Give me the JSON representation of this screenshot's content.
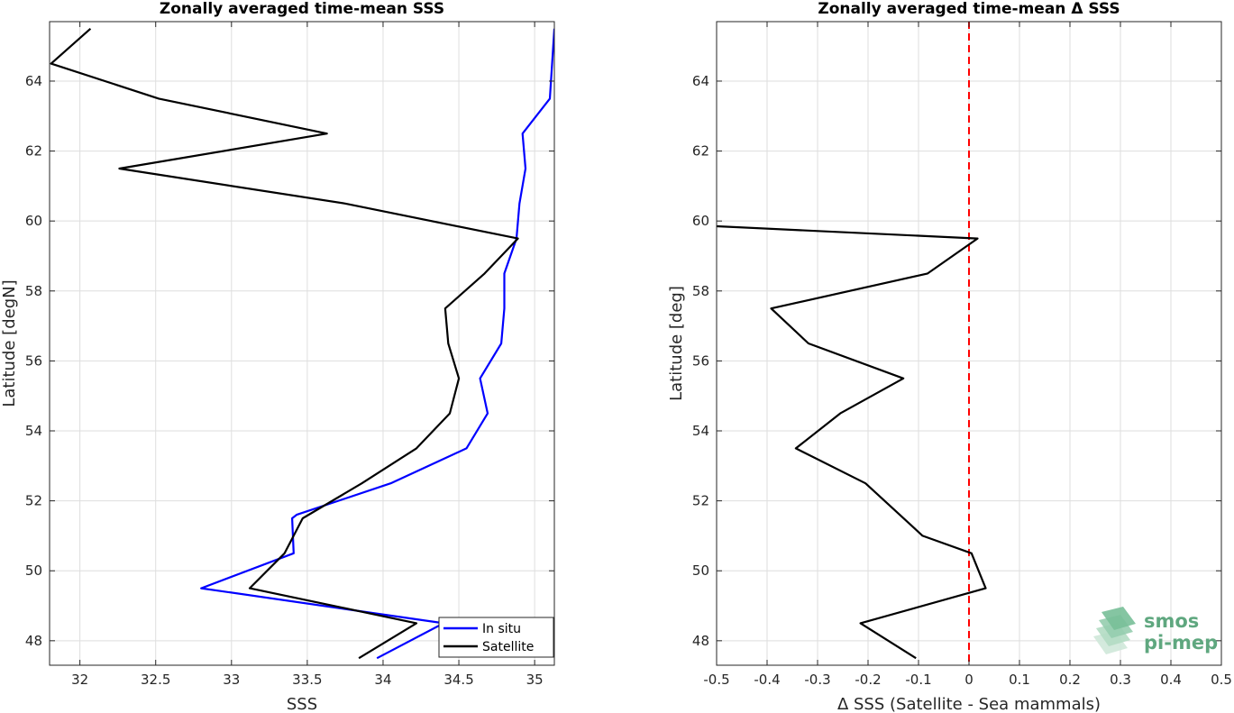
{
  "chart_data": [
    {
      "type": "line",
      "title": "Zonally averaged time-mean SSS",
      "xlabel": "SSS",
      "ylabel": "Latitude [degN]",
      "xlim": [
        31.8,
        35.13
      ],
      "ylim": [
        47.3,
        65.7
      ],
      "xticks": [
        32,
        32.5,
        33,
        33.5,
        34,
        34.5,
        35
      ],
      "xtick_labels": [
        "32",
        "32.5",
        "33",
        "33.5",
        "34",
        "34.5",
        "35"
      ],
      "yticks": [
        48,
        50,
        52,
        54,
        56,
        58,
        60,
        62,
        64
      ],
      "ytick_labels": [
        "48",
        "50",
        "52",
        "54",
        "56",
        "58",
        "60",
        "62",
        "64"
      ],
      "grid": true,
      "legend_location": "bottom-right",
      "series": [
        {
          "name": "In situ",
          "color": "#0000ff",
          "x": [
            35.13,
            35.1,
            34.92,
            34.94,
            34.9,
            34.88,
            34.8,
            34.8,
            34.78,
            34.78,
            34.64,
            34.69,
            34.55,
            34.05,
            33.43,
            33.4,
            33.41,
            32.8,
            34.4,
            33.96
          ],
          "y": [
            65.5,
            63.5,
            62.5,
            61.5,
            60.5,
            59.5,
            58.5,
            57.5,
            56.5,
            56.5,
            55.5,
            54.5,
            53.5,
            52.5,
            51.6,
            51.5,
            50.5,
            49.5,
            48.5,
            47.5
          ]
        },
        {
          "name": "Satellite",
          "color": "#000000",
          "x": [
            32.07,
            31.81,
            32.52,
            33.63,
            32.26,
            33.75,
            34.89,
            34.67,
            34.41,
            34.43,
            34.5,
            34.44,
            34.22,
            33.86,
            33.47,
            33.35,
            33.12,
            34.22,
            33.84
          ],
          "y": [
            65.5,
            64.5,
            63.5,
            62.5,
            61.5,
            60.5,
            59.5,
            58.5,
            57.5,
            56.5,
            55.5,
            54.5,
            53.5,
            52.5,
            51.5,
            50.5,
            49.5,
            48.5,
            47.5
          ]
        }
      ]
    },
    {
      "type": "line",
      "title": "Zonally averaged time-mean Δ SSS",
      "xlabel": "Δ SSS (Satellite - Sea mammals)",
      "ylabel": "Latitude [deg]",
      "xlim": [
        -0.5,
        0.5
      ],
      "ylim": [
        47.3,
        65.7
      ],
      "xticks": [
        -0.5,
        -0.4,
        -0.3,
        -0.2,
        -0.1,
        0,
        0.1,
        0.2,
        0.3,
        0.4,
        0.5
      ],
      "xtick_labels": [
        "-0.5",
        "-0.4",
        "-0.3",
        "-0.2",
        "-0.1",
        "0",
        "0.1",
        "0.2",
        "0.3",
        "0.4",
        "0.5"
      ],
      "yticks": [
        48,
        50,
        52,
        54,
        56,
        58,
        60,
        62,
        64
      ],
      "ytick_labels": [
        "48",
        "50",
        "52",
        "54",
        "56",
        "58",
        "60",
        "62",
        "64"
      ],
      "grid": true,
      "reference_line": {
        "x": 0,
        "color": "#ff0000",
        "style": "dashed"
      },
      "series": [
        {
          "color": "#000000",
          "x": [
            -0.5,
            0.017,
            -0.082,
            -0.392,
            -0.318,
            -0.13,
            -0.255,
            -0.343,
            -0.205,
            -0.092,
            0.005,
            0.033,
            -0.215,
            -0.105
          ],
          "y": [
            59.85,
            59.5,
            58.5,
            57.5,
            56.5,
            55.5,
            54.5,
            53.5,
            52.5,
            51.0,
            50.5,
            49.5,
            48.5,
            47.5
          ]
        }
      ]
    }
  ],
  "logo": {
    "line1": "smos",
    "line2": "pi-mep",
    "color": "#5fa77f"
  }
}
